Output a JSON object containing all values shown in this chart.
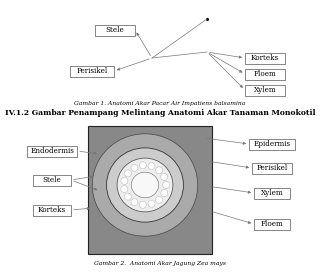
{
  "title1": "Gambar 1. Anatomi Akar Pacar Air Impatiens balsamina",
  "title2": "IV.1.2 Gambar Penampang Melintang Anatomi Akar Tanaman Monokotil",
  "title3": "Gambar 2.  Anatomi Akar Jagung Zea mays",
  "fig1_labels_left": [
    "Stele",
    "Perisikel"
  ],
  "fig1_labels_right": [
    "Korteks",
    "Floem",
    "Xylem"
  ],
  "fig2_labels_left": [
    "Endodermis",
    "Stele",
    "Korteks"
  ],
  "fig2_labels_right": [
    "Epidermis",
    "Perisikel",
    "Xylem",
    "Floem"
  ],
  "bg_color": "#ffffff",
  "box_color": "#ffffff",
  "box_edge": "#555555",
  "text_color": "#000000",
  "line_color": "#777777"
}
